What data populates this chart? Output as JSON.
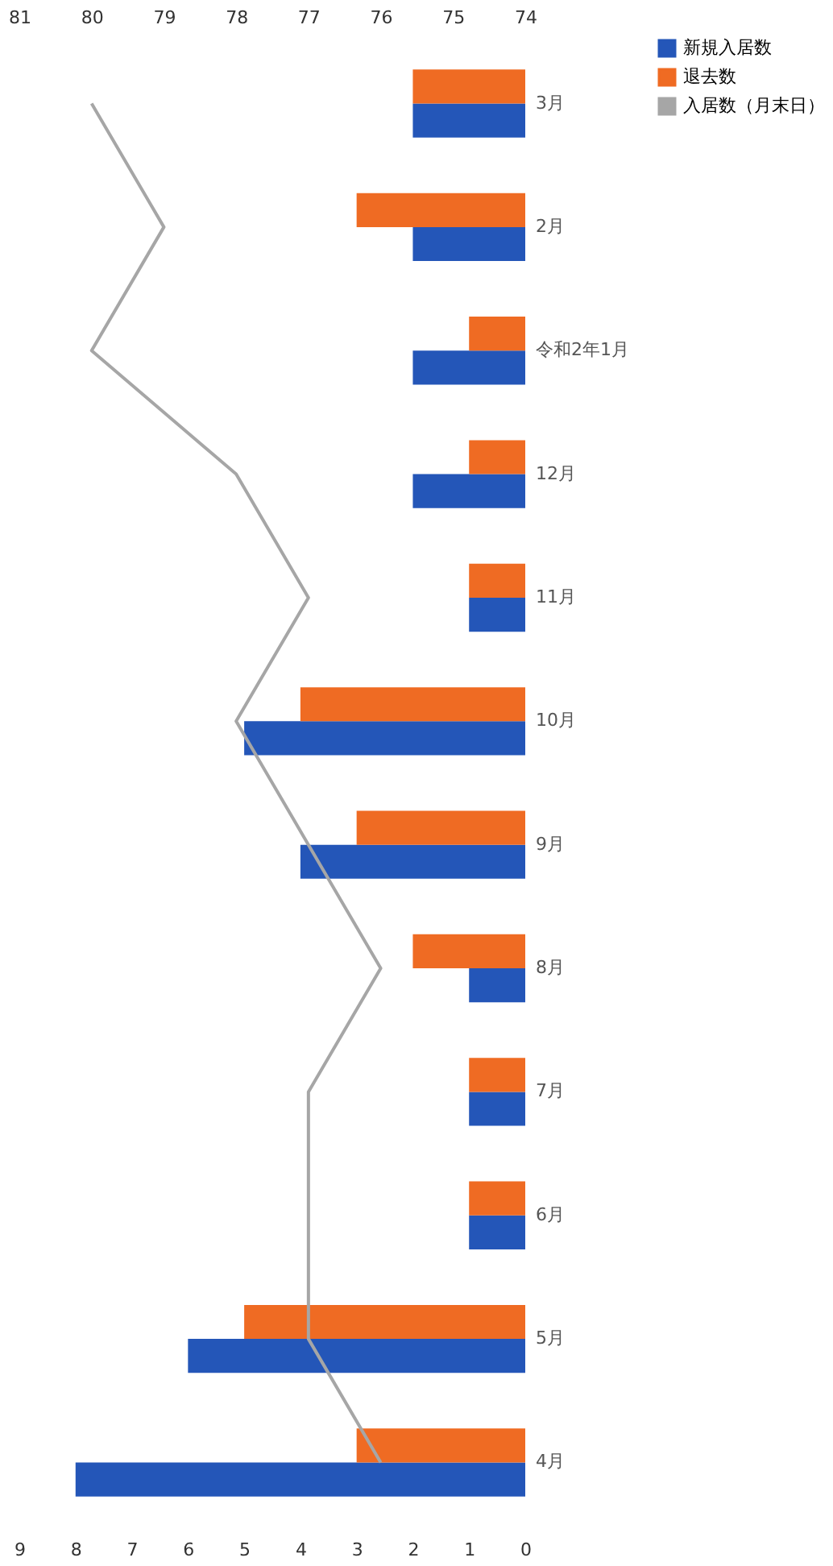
{
  "chart_data": {
    "type": "bar",
    "orientation": "horizontal",
    "categories": [
      "3月",
      "2月",
      "令和2年1月",
      "12月",
      "11月",
      "10月",
      "9月",
      "8月",
      "7月",
      "6月",
      "5月",
      "4月"
    ],
    "series": [
      {
        "name": "新規入居数",
        "color": "#2456b8",
        "values": [
          2,
          2,
          2,
          2,
          1,
          5,
          4,
          1,
          1,
          1,
          6,
          8
        ]
      },
      {
        "name": "退去数",
        "color": "#ef6b23",
        "values": [
          2,
          3,
          1,
          1,
          1,
          4,
          3,
          2,
          1,
          1,
          5,
          3
        ]
      },
      {
        "name": "入居数（月末日）",
        "type": "line",
        "axis": "x2",
        "color": "#a6a6a6",
        "values": [
          80,
          79,
          80,
          78,
          77,
          78,
          77,
          76,
          77,
          77,
          77,
          76
        ]
      }
    ],
    "xlim": [
      9,
      0
    ],
    "xticks": [
      9,
      8,
      7,
      6,
      5,
      4,
      3,
      2,
      1,
      0
    ],
    "x2lim": [
      81,
      74
    ],
    "x2ticks": [
      81,
      80,
      79,
      78,
      77,
      76,
      75,
      74
    ],
    "legend": "right"
  }
}
